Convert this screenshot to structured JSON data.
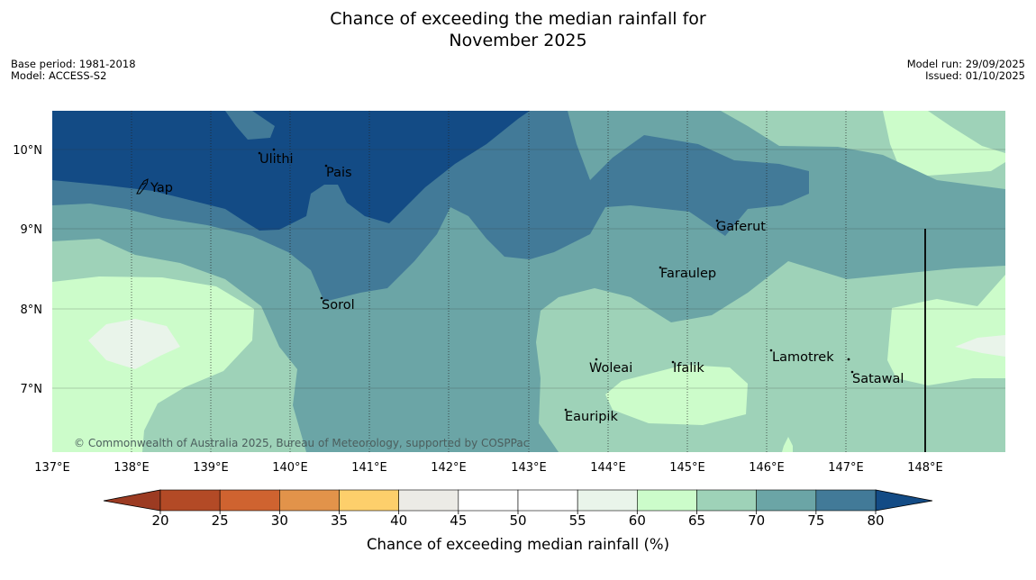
{
  "header": {
    "title_line1": "Chance of exceeding the median rainfall for",
    "title_line2": "November 2025",
    "base_period": "Base period: 1981-2018",
    "model": "Model: ACCESS-S2",
    "model_run": "Model run: 29/09/2025",
    "issued": "Issued: 01/10/2025"
  },
  "map": {
    "lon_labels": [
      "137°E",
      "138°E",
      "139°E",
      "140°E",
      "141°E",
      "142°E",
      "143°E",
      "144°E",
      "145°E",
      "146°E",
      "147°E",
      "148°E"
    ],
    "lat_labels": [
      "10°N",
      "9°N",
      "8°N",
      "7°N"
    ],
    "places": [
      "Yap",
      "Ulithi",
      "Pais",
      "Gaferut",
      "Faraulep",
      "Sorol",
      "Woleai",
      "Ifalik",
      "Lamotrek",
      "Satawal",
      "Eauripik"
    ],
    "copyright": "© Commonwealth of Australia 2025, Bureau of Meteorology, supported by COSPPac"
  },
  "colorbar": {
    "ticks": [
      "20",
      "25",
      "30",
      "35",
      "40",
      "45",
      "50",
      "55",
      "60",
      "65",
      "70",
      "75",
      "80"
    ],
    "label": "Chance of exceeding median rainfall (%)",
    "colors": [
      "#b34a26",
      "#cf6330",
      "#e2934a",
      "#fdcf6b",
      "#ecebe6",
      "#ffffff",
      "#ffffff",
      "#e9f4ea",
      "#ccfcca",
      "#9ed2b8",
      "#6ba5a6",
      "#427a98"
    ],
    "under_color": "#9c3b22",
    "over_color": "#134b85"
  }
}
